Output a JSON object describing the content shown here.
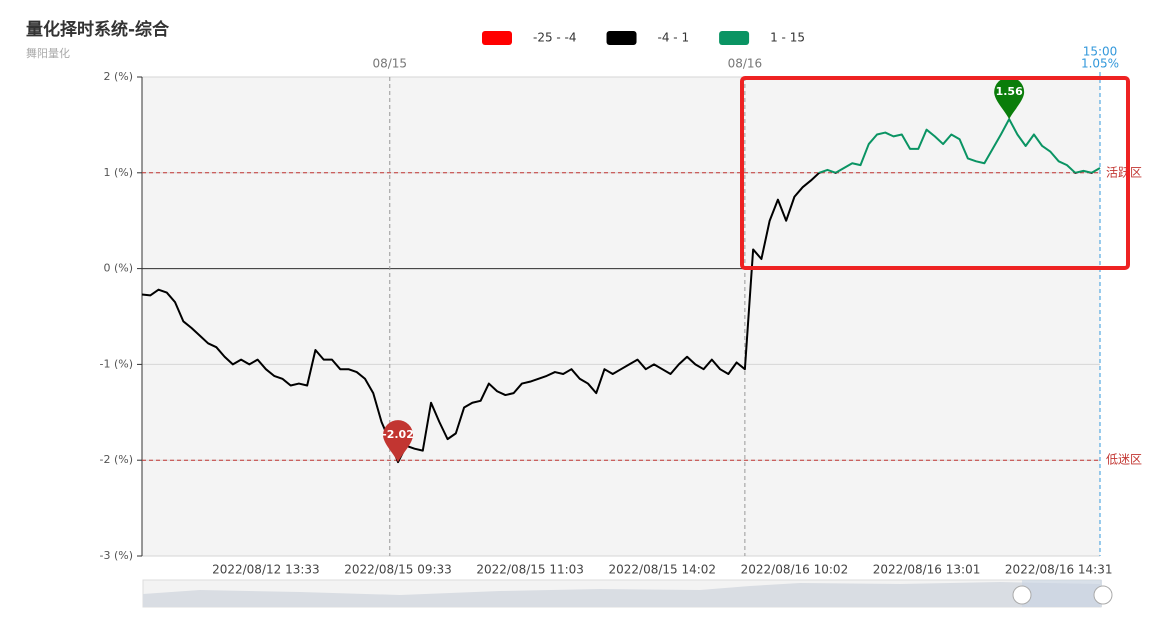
{
  "chart_data": {
    "type": "line",
    "title": "量化择时系统-综合",
    "subtitle": "舞阳量化",
    "pieces": [
      {
        "min": -25,
        "max": -4,
        "label": "-25 - -4",
        "color": "#ff0000"
      },
      {
        "min": -4,
        "max": 1,
        "label": "-4 - 1",
        "color": "#000000"
      },
      {
        "min": 1,
        "max": 15,
        "label": "1 - 15",
        "color": "#0a9463"
      }
    ],
    "categories": [
      null,
      null,
      null,
      null,
      null,
      null,
      null,
      null,
      null,
      null,
      null,
      null,
      null,
      null,
      null,
      "2022/08/12 13:33",
      null,
      null,
      null,
      null,
      null,
      null,
      null,
      null,
      null,
      null,
      null,
      null,
      null,
      null,
      null,
      "2022/08/15 09:33",
      null,
      null,
      null,
      null,
      null,
      null,
      null,
      null,
      null,
      null,
      null,
      null,
      null,
      null,
      null,
      "2022/08/15 11:03",
      null,
      null,
      null,
      null,
      null,
      null,
      null,
      null,
      null,
      null,
      null,
      null,
      null,
      null,
      null,
      "2022/08/15 14:02",
      null,
      null,
      null,
      null,
      null,
      null,
      null,
      null,
      null,
      null,
      null,
      null,
      null,
      null,
      null,
      "2022/08/16 10:02",
      null,
      null,
      null,
      null,
      null,
      null,
      null,
      null,
      null,
      null,
      null,
      null,
      null,
      null,
      null,
      "2022/08/16 13:01",
      null,
      null,
      null,
      null,
      null,
      null,
      null,
      null,
      null,
      null,
      null,
      null,
      null,
      null,
      null,
      "2022/08/16 14:31",
      null,
      null,
      null,
      null,
      null
    ],
    "values": [
      -0.27,
      -0.28,
      -0.22,
      -0.25,
      -0.35,
      -0.55,
      -0.62,
      -0.7,
      -0.78,
      -0.82,
      -0.92,
      -1.0,
      -0.95,
      -1.0,
      -0.95,
      -1.05,
      -1.12,
      -1.15,
      -1.22,
      -1.2,
      -1.22,
      -0.85,
      -0.95,
      -0.95,
      -1.05,
      -1.05,
      -1.08,
      -1.15,
      -1.3,
      -1.6,
      -1.8,
      -2.02,
      -1.85,
      -1.88,
      -1.9,
      -1.4,
      -1.6,
      -1.78,
      -1.72,
      -1.45,
      -1.4,
      -1.38,
      -1.2,
      -1.28,
      -1.32,
      -1.3,
      -1.2,
      -1.18,
      -1.15,
      -1.12,
      -1.08,
      -1.1,
      -1.05,
      -1.15,
      -1.2,
      -1.3,
      -1.05,
      -1.1,
      -1.05,
      -1.0,
      -0.95,
      -1.05,
      -1.0,
      -1.05,
      -1.1,
      -1.0,
      -0.92,
      -1.0,
      -1.05,
      -0.95,
      -1.05,
      -1.1,
      -0.98,
      -1.05,
      0.2,
      0.1,
      0.5,
      0.72,
      0.5,
      0.75,
      0.85,
      0.92,
      1.0,
      1.03,
      1.0,
      1.05,
      1.1,
      1.08,
      1.3,
      1.4,
      1.42,
      1.38,
      1.4,
      1.25,
      1.25,
      1.45,
      1.38,
      1.3,
      1.4,
      1.35,
      1.15,
      1.12,
      1.1,
      1.25,
      1.4,
      1.56,
      1.4,
      1.28,
      1.4,
      1.28,
      1.22,
      1.12,
      1.08,
      1.0,
      1.02,
      1.0,
      1.05
    ],
    "ylim": [
      -3,
      2
    ],
    "yticks": [
      {
        "value": -3,
        "label": "-3 (%)"
      },
      {
        "value": -2,
        "label": "-2 (%)"
      },
      {
        "value": -1,
        "label": "-1 (%)"
      },
      {
        "value": 0,
        "label": "0 (%)"
      },
      {
        "value": 1,
        "label": "1 (%)"
      },
      {
        "value": 2,
        "label": "2 (%)"
      }
    ],
    "grid": true,
    "mark_lines": [
      {
        "value": 1,
        "label": "活跃区"
      },
      {
        "value": -2,
        "label": "低迷区"
      }
    ],
    "day_markers": [
      {
        "label": "08/15",
        "at": 30
      },
      {
        "label": "08/16",
        "at": 73
      }
    ],
    "max_label": 1.56,
    "min_label": -2.02,
    "last": {
      "time": "15:00",
      "value": 1.05,
      "value_label": "1.05%"
    }
  }
}
